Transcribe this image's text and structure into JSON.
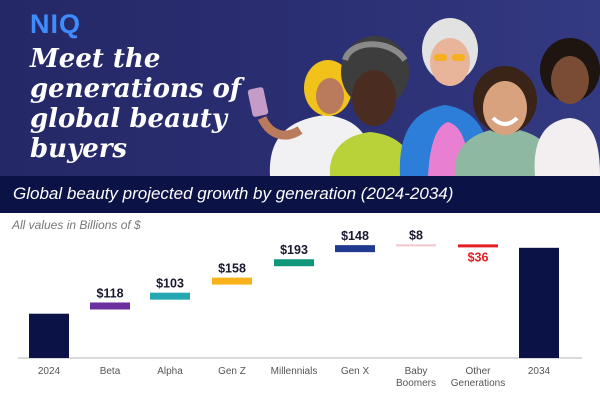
{
  "brand": "NIQ",
  "headline": [
    "Meet the",
    "generations of",
    "global beauty",
    "buyers"
  ],
  "subtitle": "Global beauty projected growth by generation (2024-2034)",
  "unit_note": "All values in Billions of $",
  "colors": {
    "totals": "#0b1245",
    "Beta": "#6b2fa0",
    "Alpha": "#26a8b3",
    "Gen Z": "#f8b31a",
    "Millennials": "#10967a",
    "Gen X": "#213a8f",
    "Baby Boomers": "#f1c7cd",
    "Other Generations": "#e41e26",
    "negative_label": "#e41e26"
  },
  "chart_data": {
    "type": "bar",
    "subtype": "waterfall",
    "title": "Global beauty projected growth by generation (2024-2034)",
    "ylabel": "All values in Billions of $",
    "categories": [
      "2024",
      "Beta",
      "Alpha",
      "Gen Z",
      "Millennials",
      "Gen X",
      "Baby Boomers",
      "Other Generations",
      "2034"
    ],
    "category_labels": [
      [
        "2024"
      ],
      [
        "Beta"
      ],
      [
        "Alpha"
      ],
      [
        "Gen Z"
      ],
      [
        "Millennials"
      ],
      [
        "Gen X"
      ],
      [
        "Baby",
        "Boomers"
      ],
      [
        "Other",
        "Generations"
      ],
      [
        "2034"
      ]
    ],
    "steps": [
      118,
      103,
      158,
      193,
      148,
      8,
      -36
    ],
    "step_labels": [
      "$118",
      "$103",
      "$158",
      "$193",
      "$148",
      "$8",
      "$36"
    ],
    "start_value": 1165,
    "end_value": 1857,
    "ylim": [
      700,
      1960
    ],
    "grid": false,
    "legend": "none"
  }
}
